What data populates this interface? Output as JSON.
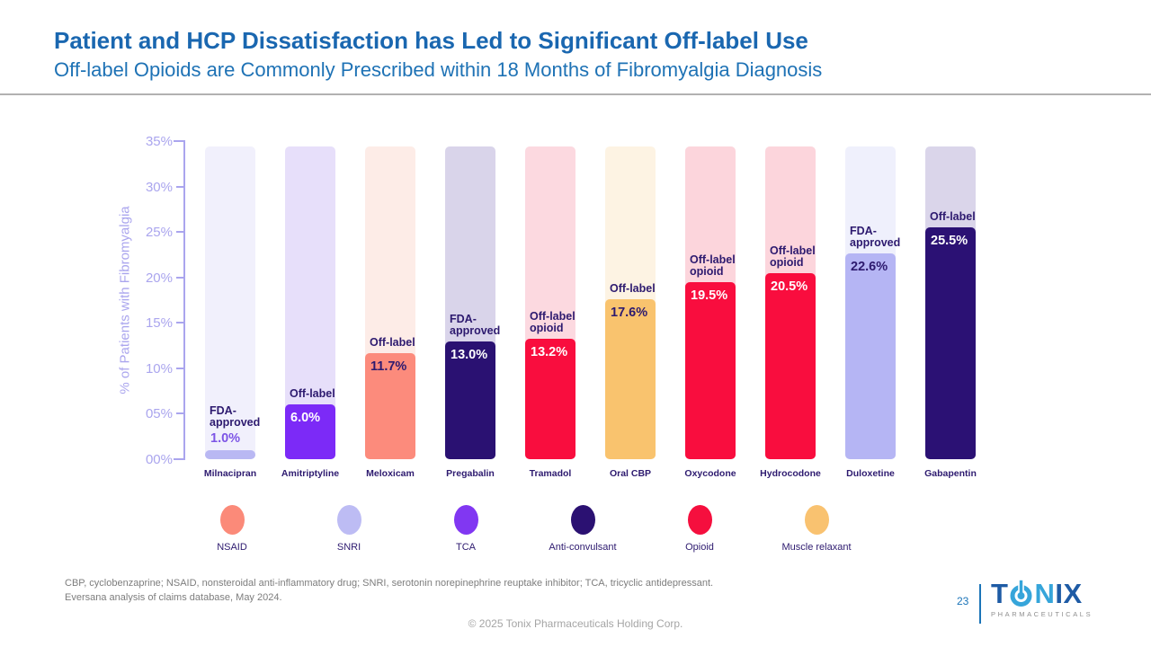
{
  "slide": {
    "title": "Patient and HCP Dissatisfaction has Led to Significant Off-label Use",
    "subtitle": "Off-label Opioids are Commonly Prescribed within 18 Months of Fibromyalgia Diagnosis",
    "footnotes": [
      "CBP, cyclobenzaprine; NSAID, nonsteroidal anti-inflammatory drug; SNRI, serotonin norepinephrine reuptake inhibitor; TCA, tricyclic antidepressant.",
      "Eversana analysis of claims database, May 2024."
    ],
    "copyright": "© 2025 Tonix Pharmaceuticals Holding Corp.",
    "page_number": "23",
    "logo": {
      "t": "T",
      "n": "N",
      "ix": "IX",
      "subtext": "PHARMACEUTICALS"
    }
  },
  "chart_data": {
    "type": "bar",
    "title": "",
    "xlabel": "",
    "ylabel": "% of Patients with Fibromyalgia",
    "ylim": [
      0,
      35
    ],
    "y_ticks": [
      "00%",
      "05%",
      "10%",
      "15%",
      "20%",
      "25%",
      "30%",
      "35%"
    ],
    "grid": false,
    "legend_position": "bottom",
    "categories": [
      "Milnacipran",
      "Amitriptyline",
      "Meloxicam",
      "Pregabalin",
      "Tramadol",
      "Oral CBP",
      "Oxycodone",
      "Hydrocodone",
      "Duloxetine",
      "Gabapentin"
    ],
    "values": [
      1.0,
      6.0,
      11.7,
      13.0,
      13.2,
      17.6,
      19.5,
      20.5,
      22.6,
      25.5
    ],
    "bars": [
      {
        "label": "Milnacipran",
        "value": 1.0,
        "value_label": "1.0%",
        "annotation": "FDA-\napproved",
        "drug_class": "SNRI",
        "fill": "#b9b8f3",
        "bg": "#f1f0fc",
        "value_color": "#7d55e6",
        "value_inside": false
      },
      {
        "label": "Amitriptyline",
        "value": 6.0,
        "value_label": "6.0%",
        "annotation": "Off-label",
        "drug_class": "TCA",
        "fill": "#7c2af7",
        "bg": "#e7dffa",
        "value_color": "#ffffff",
        "value_inside": true
      },
      {
        "label": "Meloxicam",
        "value": 11.7,
        "value_label": "11.7%",
        "annotation": "Off-label",
        "drug_class": "NSAID",
        "fill": "#fc8b7c",
        "bg": "#fdece7",
        "value_color": "#2d1a6f",
        "value_inside": true
      },
      {
        "label": "Pregabalin",
        "value": 13.0,
        "value_label": "13.0%",
        "annotation": "FDA-\napproved",
        "drug_class": "Anti-convulsant",
        "fill": "#2a1172",
        "bg": "#d9d4ea",
        "value_color": "#ffffff",
        "value_inside": true
      },
      {
        "label": "Tramadol",
        "value": 13.2,
        "value_label": "13.2%",
        "annotation": "Off-label\nopioid",
        "drug_class": "Opioid",
        "fill": "#f90d3e",
        "bg": "#fcd9e0",
        "value_color": "#ffffff",
        "value_inside": true
      },
      {
        "label": "Oral CBP",
        "value": 17.6,
        "value_label": "17.6%",
        "annotation": "Off-label",
        "drug_class": "Muscle relaxant",
        "fill": "#f9c36e",
        "bg": "#fdf3e3",
        "value_color": "#2d1a6f",
        "value_inside": true
      },
      {
        "label": "Oxycodone",
        "value": 19.5,
        "value_label": "19.5%",
        "annotation": "Off-label\nopioid",
        "drug_class": "Opioid",
        "fill": "#f90d3e",
        "bg": "#fcd5dc",
        "value_color": "#ffffff",
        "value_inside": true
      },
      {
        "label": "Hydrocodone",
        "value": 20.5,
        "value_label": "20.5%",
        "annotation": "Off-label\nopioid",
        "drug_class": "Opioid",
        "fill": "#f90d3e",
        "bg": "#fcd5dc",
        "value_color": "#ffffff",
        "value_inside": true
      },
      {
        "label": "Duloxetine",
        "value": 22.6,
        "value_label": "22.6%",
        "annotation": "FDA-\napproved",
        "drug_class": "SNRI",
        "fill": "#b5b5f4",
        "bg": "#eff0fc",
        "value_color": "#2d1a6f",
        "value_inside": true
      },
      {
        "label": "Gabapentin",
        "value": 25.5,
        "value_label": "25.5%",
        "annotation": "Off-label",
        "drug_class": "Anti-convulsant",
        "fill": "#2b1174",
        "bg": "#dad5ea",
        "value_color": "#ffffff",
        "value_inside": true
      }
    ],
    "legend": [
      {
        "label": "NSAID",
        "color": "#fb8a79"
      },
      {
        "label": "SNRI",
        "color": "#bdbcf4"
      },
      {
        "label": "TCA",
        "color": "#8137f2"
      },
      {
        "label": "Anti-convulsant",
        "color": "#2b1172"
      },
      {
        "label": "Opioid",
        "color": "#f50f3e"
      },
      {
        "label": "Muscle relaxant",
        "color": "#f9c270"
      }
    ]
  }
}
